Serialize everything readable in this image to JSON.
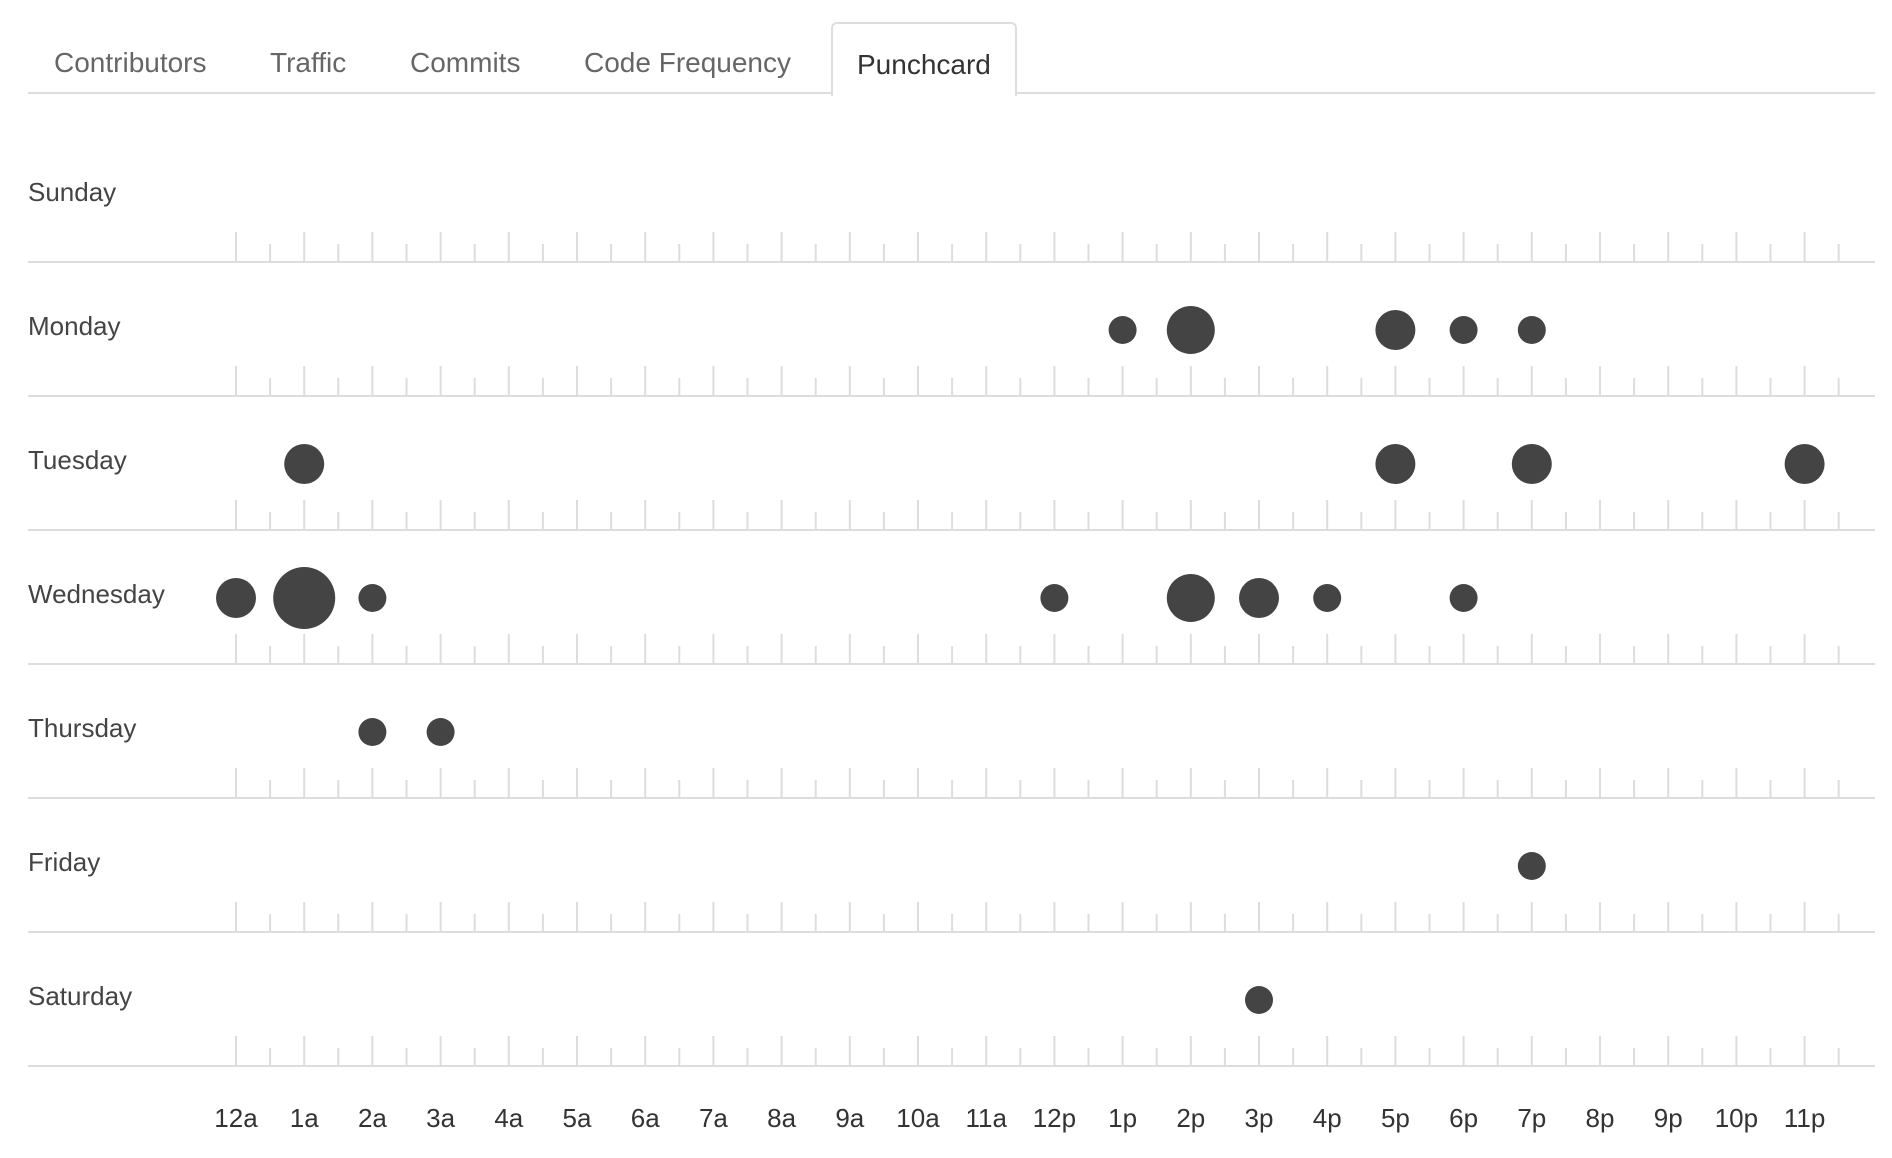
{
  "tabs": [
    {
      "label": "Contributors",
      "active": false
    },
    {
      "label": "Traffic",
      "active": false
    },
    {
      "label": "Commits",
      "active": false
    },
    {
      "label": "Code Frequency",
      "active": false
    },
    {
      "label": "Punchcard",
      "active": true
    }
  ],
  "colors": {
    "dot": "#444444",
    "grid": "#dddddd",
    "tab_border": "#dddddd"
  },
  "chart_data": {
    "type": "scatter",
    "days": [
      "Sunday",
      "Monday",
      "Tuesday",
      "Wednesday",
      "Thursday",
      "Friday",
      "Saturday"
    ],
    "hours": [
      "12a",
      "1a",
      "2a",
      "3a",
      "4a",
      "5a",
      "6a",
      "7a",
      "8a",
      "9a",
      "10a",
      "11a",
      "12p",
      "1p",
      "2p",
      "3p",
      "4p",
      "5p",
      "6p",
      "7p",
      "8p",
      "9p",
      "10p",
      "11p"
    ],
    "points": [
      {
        "day": "Monday",
        "hour": "1p",
        "size": 1
      },
      {
        "day": "Monday",
        "hour": "2p",
        "size": 3
      },
      {
        "day": "Monday",
        "hour": "5p",
        "size": 2
      },
      {
        "day": "Monday",
        "hour": "6p",
        "size": 1
      },
      {
        "day": "Monday",
        "hour": "7p",
        "size": 1
      },
      {
        "day": "Tuesday",
        "hour": "1a",
        "size": 2
      },
      {
        "day": "Tuesday",
        "hour": "5p",
        "size": 2
      },
      {
        "day": "Tuesday",
        "hour": "7p",
        "size": 2
      },
      {
        "day": "Tuesday",
        "hour": "11p",
        "size": 2
      },
      {
        "day": "Wednesday",
        "hour": "12a",
        "size": 2
      },
      {
        "day": "Wednesday",
        "hour": "1a",
        "size": 5
      },
      {
        "day": "Wednesday",
        "hour": "2a",
        "size": 1
      },
      {
        "day": "Wednesday",
        "hour": "12p",
        "size": 1
      },
      {
        "day": "Wednesday",
        "hour": "2p",
        "size": 3
      },
      {
        "day": "Wednesday",
        "hour": "3p",
        "size": 2
      },
      {
        "day": "Wednesday",
        "hour": "4p",
        "size": 1
      },
      {
        "day": "Wednesday",
        "hour": "6p",
        "size": 1
      },
      {
        "day": "Thursday",
        "hour": "2a",
        "size": 1
      },
      {
        "day": "Thursday",
        "hour": "3a",
        "size": 1
      },
      {
        "day": "Friday",
        "hour": "7p",
        "size": 1
      },
      {
        "day": "Saturday",
        "hour": "3p",
        "size": 1
      }
    ]
  }
}
